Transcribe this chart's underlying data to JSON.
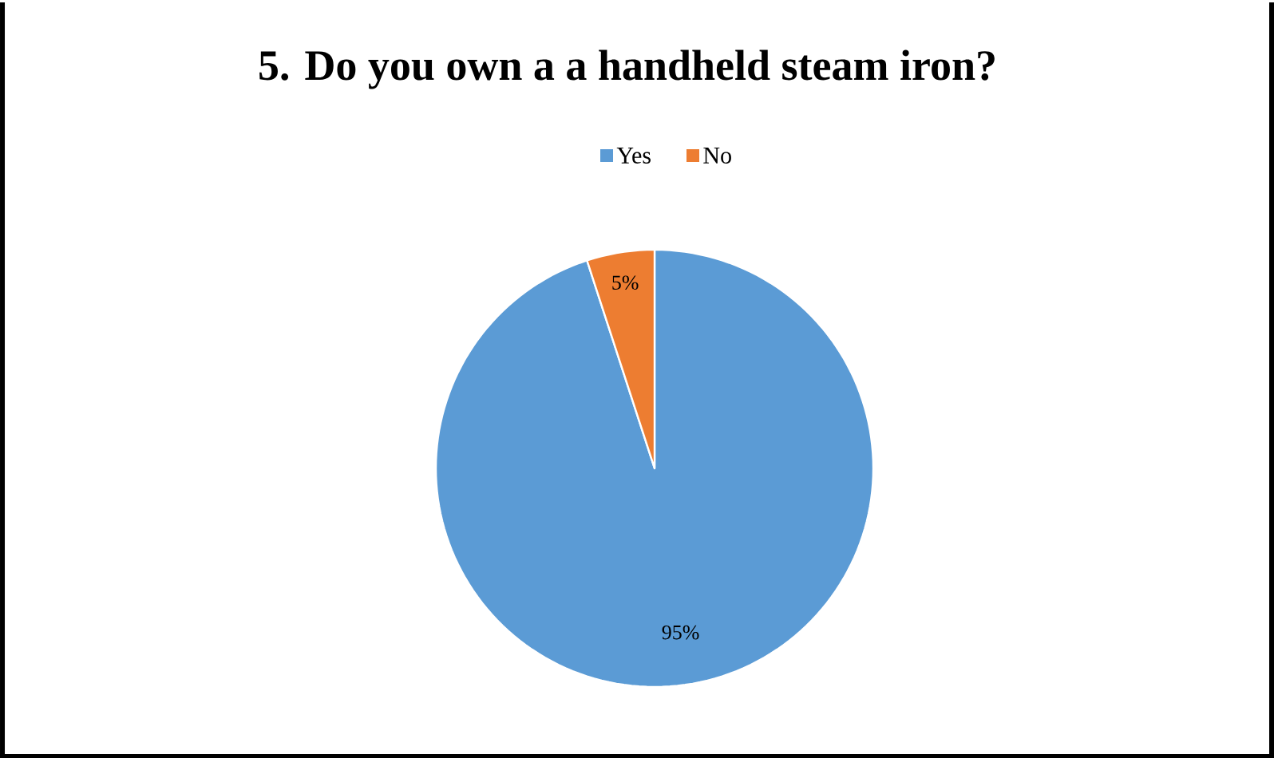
{
  "chart_data": {
    "type": "pie",
    "title": "5. Do you own a a handheld steam iron?",
    "categories": [
      "Yes",
      "No"
    ],
    "values": [
      95,
      5
    ],
    "colors": [
      "#5b9bd5",
      "#ed7d31"
    ],
    "value_labels": [
      "95%",
      "5%"
    ],
    "legend": "top"
  }
}
